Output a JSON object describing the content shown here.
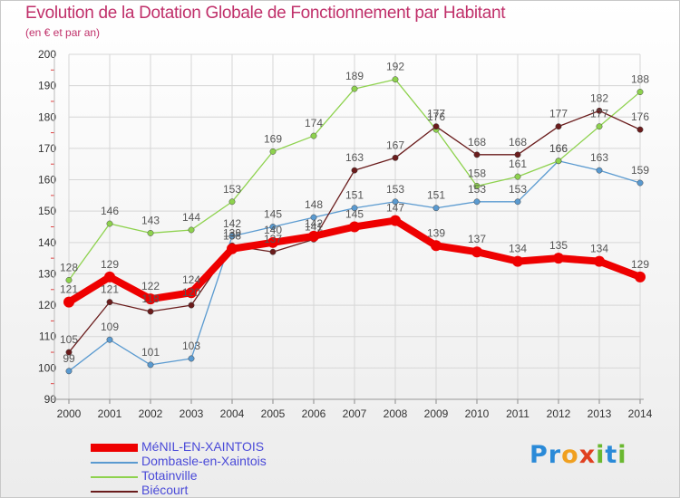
{
  "title": "Evolution de la Dotation Globale de Fonctionnement par Habitant",
  "subtitle": "(en € et par an)",
  "logo": {
    "text": "Proxiti",
    "letters": [
      "P",
      "r",
      "o",
      "x",
      "i",
      "t",
      "i"
    ],
    "colors": [
      "#2a8ad8",
      "#2a8ad8",
      "#f0a020",
      "#e04020",
      "#6ab830",
      "#2a8ad8",
      "#6ab830"
    ]
  },
  "chart_data": {
    "type": "line",
    "x": [
      "2000",
      "2001",
      "2002",
      "2003",
      "2004",
      "2005",
      "2006",
      "2007",
      "2008",
      "2009",
      "2010",
      "2011",
      "2012",
      "2013",
      "2014"
    ],
    "ylim": [
      90,
      200
    ],
    "yticks": [
      "90",
      "100",
      "110",
      "120",
      "130",
      "140",
      "150",
      "160",
      "170",
      "180",
      "190",
      "200"
    ],
    "grid": true,
    "legend_position": "bottom-left",
    "series": [
      {
        "name": "MéNIL-EN-XAINTOIS",
        "color": "#ee0000",
        "values": [
          121,
          129,
          122,
          124,
          138,
          140,
          142,
          145,
          147,
          139,
          137,
          134,
          135,
          134,
          129
        ],
        "labels": [
          "121",
          "129",
          "122",
          "124",
          "138",
          "140",
          "142",
          "145",
          "147",
          "139",
          "137",
          "134",
          "135",
          "134",
          "129"
        ]
      },
      {
        "name": "Dombasle-en-Xaintois",
        "color": "#5a9ad0",
        "values": [
          99,
          109,
          101,
          103,
          142,
          145,
          148,
          151,
          153,
          151,
          153,
          153,
          166,
          163,
          159
        ],
        "labels": [
          "99",
          "109",
          "101",
          "103",
          "142",
          "145",
          "148",
          "151",
          "153",
          "151",
          "153",
          "153",
          "166",
          "163",
          "159"
        ]
      },
      {
        "name": "Totainville",
        "color": "#8ed24e",
        "values": [
          128,
          146,
          143,
          144,
          153,
          169,
          174,
          189,
          192,
          176,
          158,
          161,
          166,
          177,
          188
        ],
        "labels": [
          "128",
          "146",
          "143",
          "144",
          "153",
          "169",
          "174",
          "189",
          "192",
          "176",
          "158",
          "161",
          "166",
          "177",
          "188"
        ]
      },
      {
        "name": "Biécourt",
        "color": "#6a1c1c",
        "values": [
          105,
          121,
          118,
          120,
          139,
          137,
          141,
          163,
          167,
          177,
          168,
          168,
          177,
          182,
          176
        ],
        "labels": [
          "105",
          "121",
          "118",
          "120",
          "139",
          "137",
          "141",
          "163",
          "167",
          "177",
          "168",
          "168",
          "177",
          "182",
          "176"
        ]
      }
    ]
  }
}
